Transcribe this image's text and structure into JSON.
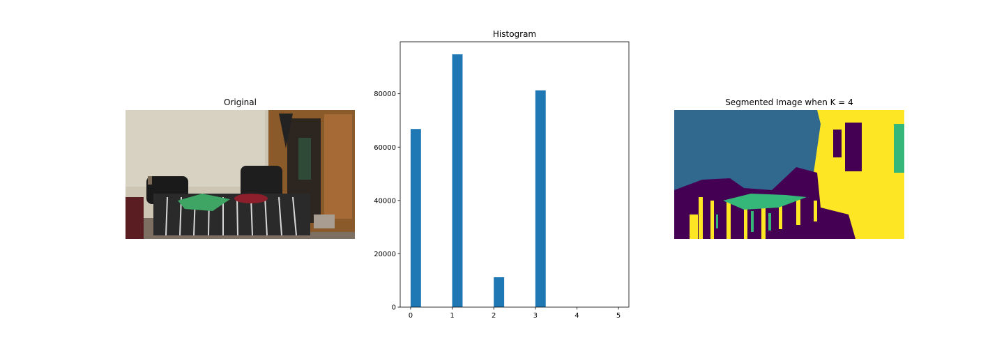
{
  "panels": {
    "original": {
      "title": "Original"
    },
    "segmented": {
      "title": "Segmented Image when K = 4"
    }
  },
  "colors": {
    "bar": "#1f77b4",
    "seg_dark": "#440154",
    "seg_blue": "#31688e",
    "seg_green": "#35b779",
    "seg_yellow": "#fde725"
  },
  "chart_data": {
    "type": "bar",
    "title": "Histogram",
    "xlabel": "",
    "ylabel": "",
    "x_centers": [
      0.125,
      1.125,
      2.125,
      3.125
    ],
    "values": [
      66800,
      94800,
      11200,
      81300
    ],
    "bar_width": 0.25,
    "xlim": [
      -0.25,
      5.25
    ],
    "ylim": [
      0,
      99500
    ],
    "xticks": [
      0,
      1,
      2,
      3,
      4,
      5
    ],
    "yticks": [
      0,
      20000,
      40000,
      60000,
      80000
    ],
    "grid": false
  }
}
